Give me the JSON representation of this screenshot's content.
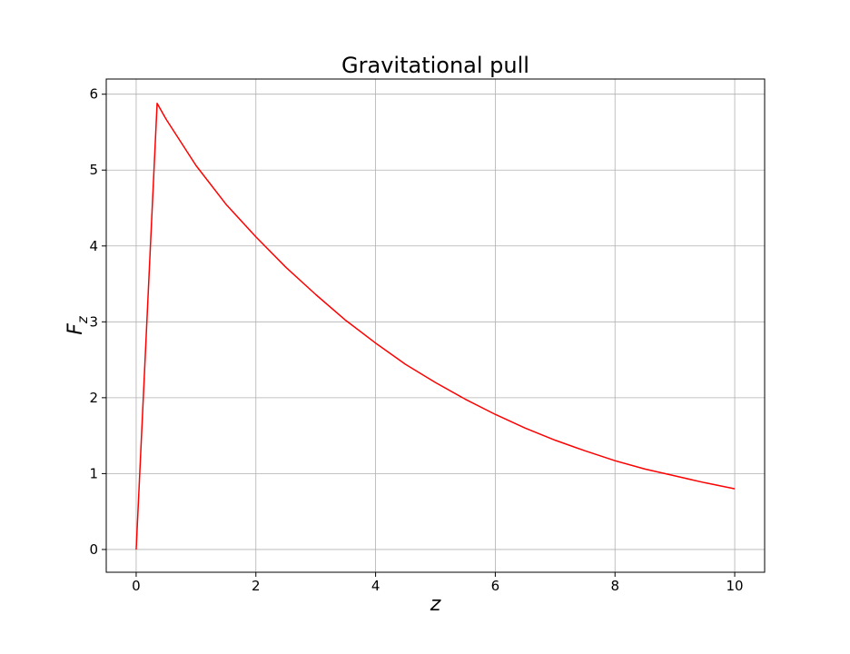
{
  "chart_data": {
    "type": "line",
    "title": "Gravitational pull",
    "xlabel": "z",
    "ylabel": {
      "base": "F",
      "subscript": "z"
    },
    "xlim": [
      -0.5,
      10.5
    ],
    "ylim": [
      -0.3,
      6.2
    ],
    "xticks": [
      0,
      2,
      4,
      6,
      8,
      10
    ],
    "yticks": [
      0,
      1,
      2,
      3,
      4,
      5,
      6
    ],
    "grid": true,
    "series": [
      {
        "color": "#ff0000",
        "x": [
          0,
          0.35,
          0.5,
          1.0,
          1.5,
          2.0,
          2.5,
          3.0,
          3.5,
          4.0,
          4.5,
          5.0,
          5.5,
          6.0,
          6.5,
          7.0,
          7.5,
          8.0,
          8.5,
          9.0,
          9.5,
          10.0
        ],
        "y": [
          0,
          5.88,
          5.67,
          5.06,
          4.55,
          4.12,
          3.72,
          3.36,
          3.02,
          2.72,
          2.44,
          2.2,
          1.98,
          1.78,
          1.6,
          1.44,
          1.3,
          1.17,
          1.06,
          0.97,
          0.88,
          0.8
        ]
      }
    ]
  }
}
